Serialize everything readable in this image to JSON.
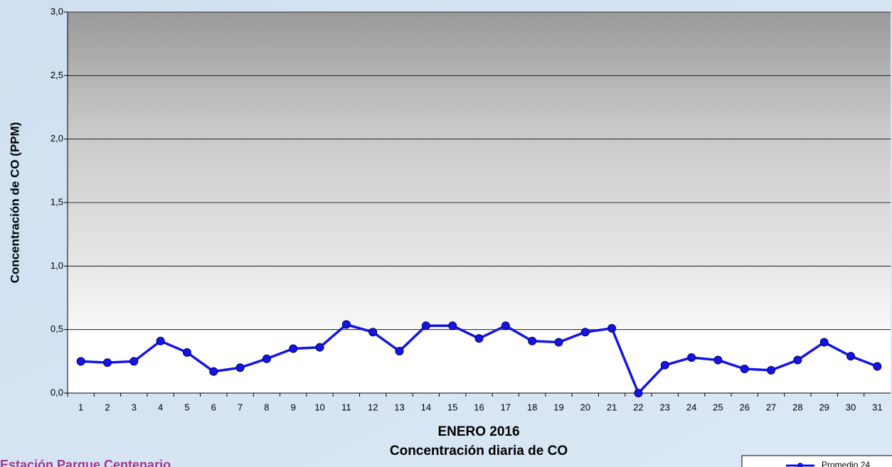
{
  "chart_data": {
    "type": "line",
    "title": "ENERO 2016",
    "subtitle": "Concentración diaria de CO",
    "y_label": "Concentración de CO (PPM)",
    "station": "Estación Parque Centenario",
    "categories": [
      "1",
      "2",
      "3",
      "4",
      "5",
      "6",
      "7",
      "8",
      "9",
      "10",
      "11",
      "12",
      "13",
      "14",
      "15",
      "16",
      "17",
      "18",
      "19",
      "20",
      "21",
      "22",
      "23",
      "24",
      "25",
      "26",
      "27",
      "28",
      "29",
      "30",
      "31"
    ],
    "series": [
      {
        "name": "Promedio 24",
        "color": "#1414e6",
        "values": [
          0.25,
          0.24,
          0.25,
          0.41,
          0.32,
          0.17,
          0.2,
          0.27,
          0.35,
          0.36,
          0.54,
          0.48,
          0.33,
          0.53,
          0.53,
          0.43,
          0.53,
          0.41,
          0.4,
          0.48,
          0.51,
          0.0,
          0.22,
          0.28,
          0.26,
          0.19,
          0.18,
          0.26,
          0.4,
          0.29,
          0.21
        ]
      }
    ],
    "ylim": [
      0,
      3
    ],
    "yticks": [
      {
        "value": 0,
        "label": "0,0"
      },
      {
        "value": 0.5,
        "label": "0,5"
      },
      {
        "value": 1,
        "label": "1,0"
      },
      {
        "value": 1.5,
        "label": "1,5"
      },
      {
        "value": 2,
        "label": "2,0"
      },
      {
        "value": 2.5,
        "label": "2,5"
      },
      {
        "value": 3,
        "label": "3,0"
      }
    ],
    "grid": true
  }
}
